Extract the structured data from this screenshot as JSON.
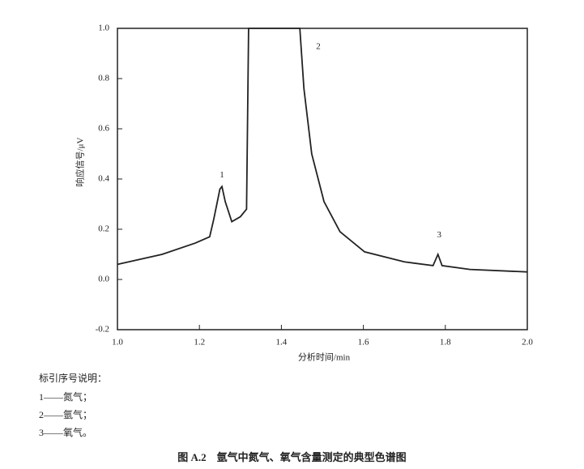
{
  "chart_data": {
    "type": "line",
    "xlabel": "分析时间/min",
    "ylabel": "响应信号/μV",
    "x": [
      1.0,
      1.109,
      1.19,
      1.225,
      1.235,
      1.25,
      1.255,
      1.263,
      1.279,
      1.3,
      1.315,
      1.32,
      1.445,
      1.455,
      1.474,
      1.504,
      1.543,
      1.603,
      1.7,
      1.77,
      1.782,
      1.792,
      1.86,
      2.0
    ],
    "series": [
      {
        "color": "#222222",
        "values": [
          0.06,
          0.1,
          0.145,
          0.17,
          0.24,
          0.36,
          0.37,
          0.31,
          0.23,
          0.25,
          0.28,
          1.0,
          1.0,
          0.76,
          0.5,
          0.31,
          0.19,
          0.11,
          0.07,
          0.055,
          0.1,
          0.055,
          0.04,
          0.03
        ]
      }
    ],
    "xlim": [
      1.0,
      2.0
    ],
    "xticks": [
      {
        "value": 1.0,
        "label": "1.0"
      },
      1.2,
      1.4,
      1.6,
      1.8,
      {
        "value": 2.0,
        "label": "2.0"
      }
    ],
    "ylim": [
      -0.2,
      1.0
    ],
    "yticks": [
      -0.2,
      {
        "value": 0,
        "label": "0.0"
      },
      0.2,
      0.4,
      0.6,
      0.8,
      {
        "value": 1.0,
        "label": "1.0"
      }
    ],
    "annotations": [
      {
        "text": "1",
        "x": 1.255,
        "y": 0.37
      },
      {
        "text": "2",
        "x": 1.49,
        "y": 0.88
      },
      {
        "text": "3",
        "x": 1.785,
        "y": 0.13
      }
    ]
  },
  "notes": {
    "title": "标引序号说明：",
    "items": [
      "1——氮气；",
      "2——氩气；",
      "3——氧气。"
    ]
  },
  "caption": "图 A.2　氩气中氮气、氧气含量测定的典型色谱图"
}
